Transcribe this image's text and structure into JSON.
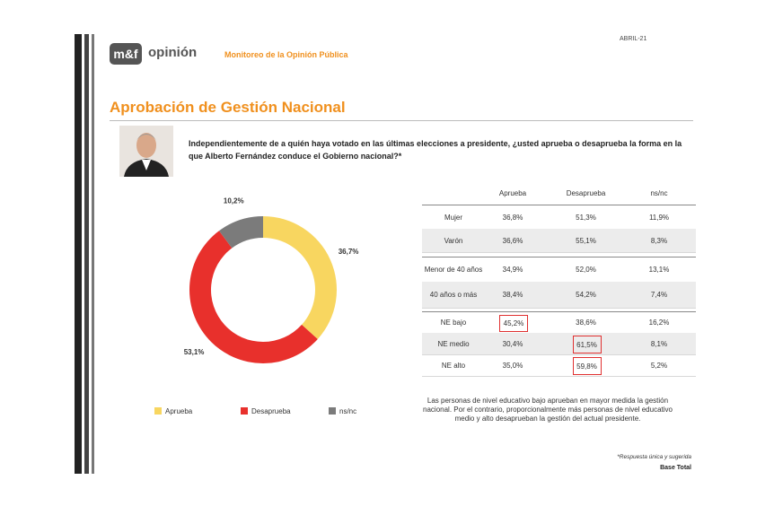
{
  "header": {
    "brand": "m&f",
    "brand_word": "opinión",
    "subtitle": "Monitoreo de la Opinión Pública",
    "date": "ABRIL-21"
  },
  "title": "Aprobación de Gestión Nacional",
  "question": "Independientemente de a quién haya votado en las últimas elecciones a presidente, ¿usted aprueba o desaprueba la forma en la que Alberto Fernández conduce el Gobierno nacional?*",
  "chart_data": {
    "type": "pie",
    "donut": true,
    "categories": [
      "Aprueba",
      "Desaprueba",
      "ns/nc"
    ],
    "values": [
      36.7,
      53.1,
      10.2
    ],
    "value_labels": [
      "36,7%",
      "53,1%",
      "10,2%"
    ],
    "colors": [
      "#f8d660",
      "#e8302c",
      "#7b7b7b"
    ],
    "legend": "bottom"
  },
  "table": {
    "columns": [
      "Aprueba",
      "Desaprueba",
      "ns/nc"
    ],
    "groups": [
      [
        [
          "Mujer",
          "36,8%",
          "51,3%",
          "11,9%"
        ],
        [
          "Varón",
          "36,6%",
          "55,1%",
          "8,3%"
        ]
      ],
      [
        [
          "Menor de 40 años",
          "34,9%",
          "52,0%",
          "13,1%"
        ],
        [
          "40 años o más",
          "38,4%",
          "54,2%",
          "7,4%"
        ]
      ],
      [
        [
          "NE bajo",
          "45,2%",
          "38,6%",
          "16,2%"
        ],
        [
          "NE medio",
          "30,4%",
          "61,5%",
          "8,1%"
        ],
        [
          "NE alto",
          "35,0%",
          "59,8%",
          "5,2%"
        ]
      ]
    ]
  },
  "note": "Las personas de nivel educativo bajo aprueban en mayor medida la gestión nacional. Por el contrario, proporcionalmente más personas de nivel educativo medio y alto desaprueban la gestión del actual presidente.",
  "footnote": "*Respuesta única y sugerida",
  "base": "Base Total"
}
